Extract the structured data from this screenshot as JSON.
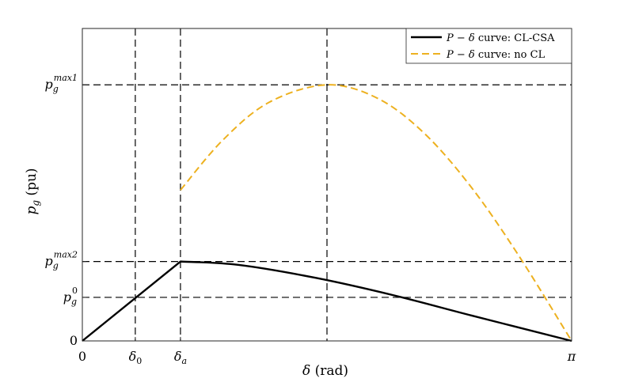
{
  "chart_data": {
    "type": "line",
    "xlabel_symbol": "δ",
    "xlabel_unit": "(rad)",
    "ylabel_symbol": "p",
    "ylabel_sub": "g",
    "ylabel_unit": "(pu)",
    "xlim": [
      0,
      3.14159
    ],
    "ylim": [
      0,
      1.22
    ],
    "x_ticks": [
      {
        "value": 0,
        "main": "0",
        "sub": ""
      },
      {
        "value": 0.34,
        "main": "δ",
        "sub": "0"
      },
      {
        "value": 0.63,
        "main": "δ",
        "sub": "a"
      },
      {
        "value": 3.14159,
        "main": "π",
        "sub": ""
      }
    ],
    "y_ticks": [
      {
        "value": 0,
        "main": "0",
        "sub": "",
        "sup": ""
      },
      {
        "value": 0.17,
        "main": "p",
        "sub": "g",
        "sup": "0"
      },
      {
        "value": 0.31,
        "main": "p",
        "sub": "g",
        "sup": "max2"
      },
      {
        "value": 1.0,
        "main": "p",
        "sub": "g",
        "sup": "max1"
      }
    ],
    "reference_lines": {
      "vertical": [
        0.34,
        0.63,
        1.5708
      ],
      "horizontal": [
        0.17,
        0.31,
        1.0
      ]
    },
    "series": [
      {
        "name": "P − δ curve: CL-CSA",
        "color": "#000000",
        "style": "solid",
        "x": [
          0,
          0.63,
          1.0,
          1.5,
          2.0,
          2.5,
          3.14159
        ],
        "y": [
          0,
          0.31,
          0.297,
          0.246,
          0.178,
          0.099,
          0
        ]
      },
      {
        "name": "P − δ curve: no CL",
        "color": "#EDB120",
        "style": "dashed",
        "x": [
          0.63,
          0.9,
          1.2,
          1.5708,
          1.9,
          2.2,
          2.5,
          2.8,
          3.14159
        ],
        "y": [
          0.589,
          0.783,
          0.932,
          1.0,
          0.946,
          0.808,
          0.598,
          0.335,
          0
        ]
      }
    ],
    "legend_position": "top-right",
    "legend": [
      {
        "prefix": "P − δ",
        "suffix": " curve: CL-CSA"
      },
      {
        "prefix": "P − δ",
        "suffix": " curve: no CL"
      }
    ]
  }
}
